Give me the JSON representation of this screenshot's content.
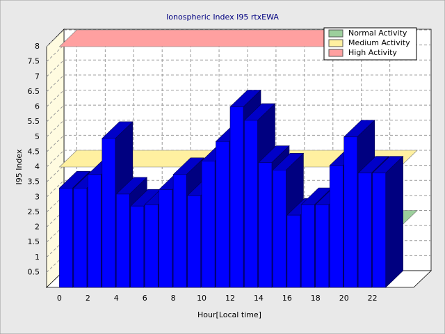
{
  "chart_data": {
    "type": "bar3d",
    "title": "Ionospheric Index I95 rtxEWA",
    "x_label": "Hour[Local time]",
    "y_label": "I95 Index",
    "x": [
      0,
      1,
      2,
      3,
      4,
      5,
      6,
      7,
      8,
      9,
      10,
      11,
      12,
      13,
      14,
      15,
      16,
      17,
      18,
      19,
      20,
      21,
      22
    ],
    "values": [
      3.3,
      3.3,
      3.75,
      4.95,
      3.1,
      2.7,
      2.75,
      3.25,
      3.75,
      3.05,
      4.2,
      4.85,
      6.0,
      5.55,
      4.15,
      3.9,
      2.4,
      2.75,
      2.75,
      4.05,
      5.0,
      3.8,
      3.8
    ],
    "color": "#0000ff",
    "xlim": [
      -0.9,
      24.9
    ],
    "xticks": [
      0,
      2,
      4,
      6,
      8,
      10,
      12,
      14,
      16,
      18,
      20,
      22
    ],
    "ylim": [
      0,
      8
    ],
    "yticks": [
      0.5,
      1,
      1.5,
      2,
      2.5,
      3,
      3.5,
      4,
      4.5,
      5,
      5.5,
      6,
      6.5,
      7,
      7.5,
      8
    ],
    "grid": true,
    "legend": "top-right",
    "thresholds": [
      {
        "name": "Normal Activity",
        "color": "#9ccf9c",
        "value": 2
      },
      {
        "name": "Medium Activity",
        "color": "#fff0a0",
        "value": 4
      },
      {
        "name": "High Activity",
        "color": "#ffa0a0",
        "value": 8
      }
    ]
  }
}
